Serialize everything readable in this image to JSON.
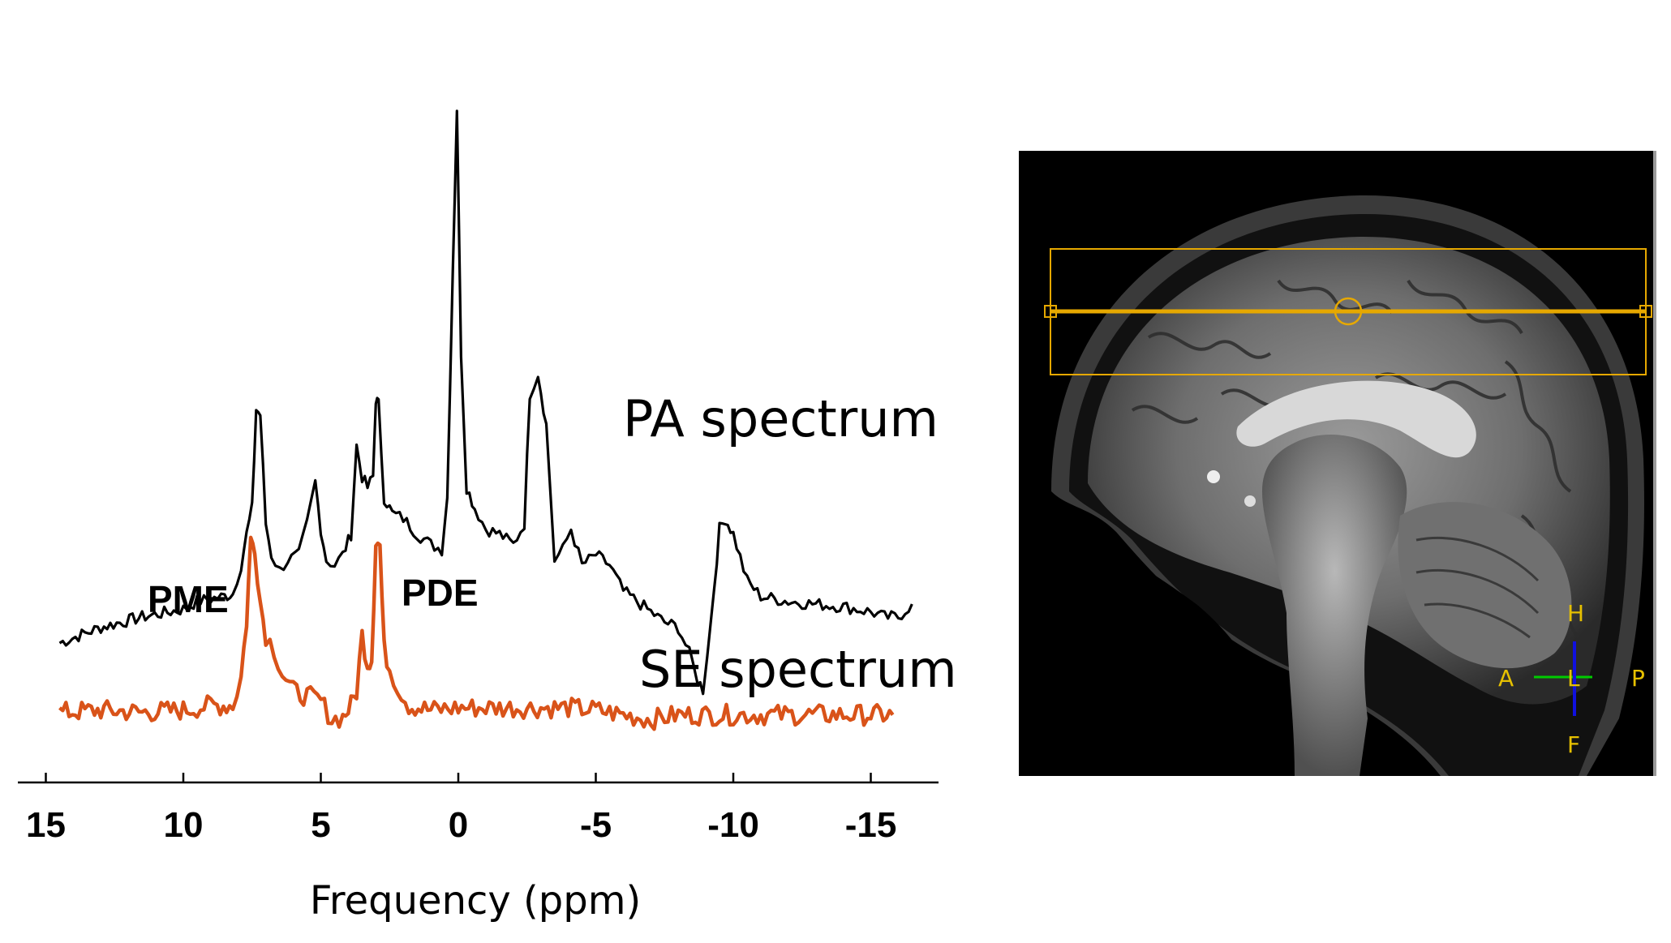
{
  "chart_data": {
    "type": "line",
    "xlabel": "Frequency (ppm)",
    "xlim": [
      15.2,
      -17.2
    ],
    "xticks": [
      15,
      10,
      5,
      0,
      -5,
      -10,
      -15
    ],
    "tick_labels": [
      "15",
      "10",
      "5",
      "0",
      "-5",
      "-10",
      "-15"
    ],
    "series": [
      {
        "name": "PA spectrum",
        "color": "#000000",
        "points": [
          [
            14.5,
            -2.0
          ],
          [
            13.0,
            -1.7
          ],
          [
            11.5,
            -1.5
          ],
          [
            10.0,
            -1.35
          ],
          [
            9.5,
            -1.2
          ],
          [
            8.5,
            -1.1
          ],
          [
            8.2,
            -1.05
          ],
          [
            7.9,
            -0.5
          ],
          [
            7.7,
            0.1
          ],
          [
            7.5,
            0.6
          ],
          [
            7.35,
            2.5
          ],
          [
            7.2,
            2.4
          ],
          [
            7.0,
            0.3
          ],
          [
            6.8,
            -0.3
          ],
          [
            6.5,
            -0.6
          ],
          [
            6.2,
            -0.4
          ],
          [
            5.8,
            -0.3
          ],
          [
            5.5,
            0.3
          ],
          [
            5.2,
            1.1
          ],
          [
            5.0,
            0.2
          ],
          [
            4.8,
            -0.4
          ],
          [
            4.5,
            -0.5
          ],
          [
            4.2,
            -0.3
          ],
          [
            3.9,
            0.1
          ],
          [
            3.7,
            1.8
          ],
          [
            3.5,
            1.2
          ],
          [
            3.3,
            1.0
          ],
          [
            3.1,
            1.2
          ],
          [
            3.0,
            2.7
          ],
          [
            2.9,
            2.6
          ],
          [
            2.7,
            0.8
          ],
          [
            2.4,
            0.5
          ],
          [
            2.0,
            0.4
          ],
          [
            1.5,
            0.1
          ],
          [
            1.0,
            -0.1
          ],
          [
            0.6,
            -0.2
          ],
          [
            0.4,
            0.8
          ],
          [
            0.2,
            5.2
          ],
          [
            0.05,
            8.3
          ],
          [
            -0.1,
            3.6
          ],
          [
            -0.3,
            1.0
          ],
          [
            -0.6,
            0.6
          ],
          [
            -1.0,
            0.2
          ],
          [
            -1.5,
            0.1
          ],
          [
            -2.0,
            -0.1
          ],
          [
            -2.4,
            0.3
          ],
          [
            -2.6,
            2.8
          ],
          [
            -2.9,
            3.2
          ],
          [
            -3.2,
            2.2
          ],
          [
            -3.5,
            -0.4
          ],
          [
            -3.8,
            -0.2
          ],
          [
            -4.1,
            0.2
          ],
          [
            -4.5,
            -0.5
          ],
          [
            -5.0,
            -0.3
          ],
          [
            -5.5,
            -0.5
          ],
          [
            -6.0,
            -1.0
          ],
          [
            -6.5,
            -1.2
          ],
          [
            -7.0,
            -1.4
          ],
          [
            -7.5,
            -1.6
          ],
          [
            -8.0,
            -1.7
          ],
          [
            -8.4,
            -2.2
          ],
          [
            -8.7,
            -2.7
          ],
          [
            -8.9,
            -2.9
          ],
          [
            -9.2,
            -1.5
          ],
          [
            -9.5,
            0.2
          ],
          [
            -9.7,
            0.4
          ],
          [
            -10.0,
            0.1
          ],
          [
            -10.5,
            -0.8
          ],
          [
            -11.0,
            -1.1
          ],
          [
            -12.0,
            -1.2
          ],
          [
            -13.0,
            -1.25
          ],
          [
            -14.0,
            -1.3
          ],
          [
            -15.0,
            -1.4
          ],
          [
            -15.5,
            -1.5
          ],
          [
            -16.0,
            -1.5
          ],
          [
            -16.5,
            -1.25
          ]
        ]
      },
      {
        "name": "SE spectrum",
        "color": "#D95319",
        "points": [
          [
            14.5,
            -0.15
          ],
          [
            13.0,
            -0.1
          ],
          [
            11.5,
            -0.15
          ],
          [
            10.0,
            -0.1
          ],
          [
            9.0,
            0.0
          ],
          [
            8.2,
            0.0
          ],
          [
            7.9,
            0.6
          ],
          [
            7.7,
            1.8
          ],
          [
            7.55,
            3.5
          ],
          [
            7.4,
            3.4
          ],
          [
            7.2,
            2.2
          ],
          [
            7.0,
            1.5
          ],
          [
            6.7,
            1.2
          ],
          [
            6.4,
            0.7
          ],
          [
            6.0,
            0.3
          ],
          [
            5.5,
            0.2
          ],
          [
            5.0,
            0.1
          ],
          [
            4.6,
            -0.3
          ],
          [
            4.2,
            -0.25
          ],
          [
            3.9,
            0.0
          ],
          [
            3.7,
            0.3
          ],
          [
            3.5,
            1.5
          ],
          [
            3.3,
            0.9
          ],
          [
            3.15,
            1.0
          ],
          [
            3.0,
            3.5
          ],
          [
            2.85,
            3.4
          ],
          [
            2.7,
            1.2
          ],
          [
            2.5,
            0.8
          ],
          [
            2.2,
            0.4
          ],
          [
            1.8,
            0.0
          ],
          [
            1.0,
            -0.1
          ],
          [
            0.0,
            -0.05
          ],
          [
            -1.0,
            -0.05
          ],
          [
            -2.0,
            -0.05
          ],
          [
            -3.0,
            -0.05
          ],
          [
            -4.0,
            -0.05
          ],
          [
            -5.0,
            -0.1
          ],
          [
            -6.0,
            -0.2
          ],
          [
            -7.0,
            -0.3
          ],
          [
            -8.0,
            -0.2
          ],
          [
            -9.0,
            -0.2
          ],
          [
            -10.0,
            -0.2
          ],
          [
            -11.0,
            -0.2
          ],
          [
            -12.0,
            -0.2
          ],
          [
            -13.0,
            -0.2
          ],
          [
            -14.0,
            -0.2
          ],
          [
            -15.0,
            -0.2
          ],
          [
            -15.8,
            -0.2
          ]
        ]
      }
    ],
    "annotations": [
      "PME",
      "PDE"
    ]
  },
  "mri": {
    "orientation": {
      "head": "H",
      "foot": "F",
      "anterior": "A",
      "posterior": "P",
      "left": "L"
    },
    "colors": {
      "slab": "#E6A800",
      "lr_axis": "#00CC00",
      "hf_axis": "#1010E0",
      "orientation_text": "#E6C000"
    }
  }
}
